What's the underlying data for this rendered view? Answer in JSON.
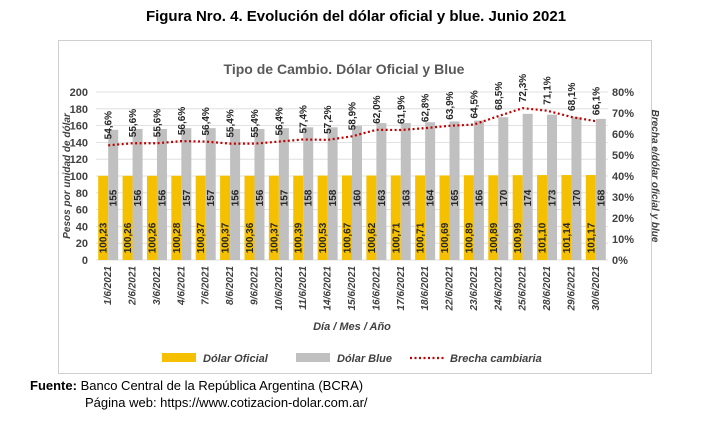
{
  "figure_title": "Figura Nro. 4. Evolución del dólar oficial y blue. Junio 2021",
  "source": {
    "label": "Fuente:",
    "text": "Banco Central de la República Argentina (BCRA)",
    "web": "Página web: https://www.cotizacion-dolar.com.ar/"
  },
  "colors": {
    "oficial": "#F5C000",
    "blue": "#C0C0C0",
    "brecha": "#C00000",
    "grid": "#d9d9d9"
  },
  "chart_data": {
    "type": "bar",
    "title": "Tipo de Cambio. Dólar Oficial y Blue",
    "xlabel": "Día / Mes / Año",
    "ylabel": "Pesos por unidad de dólar",
    "y2label": "Brecha e/dólar oficial y blue",
    "ylim": [
      0,
      200
    ],
    "y_ticks": [
      "0",
      "20",
      "40",
      "60",
      "80",
      "100",
      "120",
      "140",
      "160",
      "180",
      "200"
    ],
    "y2lim": [
      0,
      80
    ],
    "y2_ticks": [
      "0%",
      "10%",
      "20%",
      "30%",
      "40%",
      "50%",
      "60%",
      "70%",
      "80%"
    ],
    "grid": true,
    "legend_position": "bottom",
    "categories": [
      "1/6/2021",
      "2/6/2021",
      "3/6/2021",
      "4/6/2021",
      "7/6/2021",
      "8/6/2021",
      "9/6/2021",
      "10/6/2021",
      "11/6/2021",
      "14/6/2021",
      "15/6/2021",
      "16/6/2021",
      "17/6/2021",
      "18/6/2021",
      "22/6/2021",
      "23/6/2021",
      "24/6/2021",
      "25/6/2021",
      "28/6/2021",
      "29/6/2021",
      "30/6/2021"
    ],
    "series": [
      {
        "name": "Dólar Oficial",
        "kind": "bar",
        "values": [
          100.23,
          100.26,
          100.26,
          100.28,
          100.37,
          100.37,
          100.36,
          100.37,
          100.39,
          100.53,
          100.67,
          100.62,
          100.71,
          100.71,
          100.69,
          100.89,
          100.89,
          100.99,
          101.1,
          101.14,
          101.17
        ],
        "labels": [
          "100,23",
          "100,26",
          "100,26",
          "100,28",
          "100,37",
          "100,37",
          "100,36",
          "100,37",
          "100,39",
          "100,53",
          "100,67",
          "100,62",
          "100,71",
          "100,71",
          "100,69",
          "100,89",
          "100,89",
          "100,99",
          "101,10",
          "101,14",
          "101,17"
        ]
      },
      {
        "name": "Dólar Blue",
        "kind": "bar",
        "values": [
          155,
          156,
          156,
          157,
          157,
          156,
          156,
          157,
          158,
          158,
          160,
          163,
          163,
          164,
          165,
          166,
          170,
          174,
          173,
          170,
          168
        ],
        "labels": [
          "155",
          "156",
          "156",
          "157",
          "157",
          "156",
          "156",
          "157",
          "158",
          "158",
          "160",
          "163",
          "163",
          "164",
          "165",
          "166",
          "170",
          "174",
          "173",
          "170",
          "168"
        ]
      },
      {
        "name": "Brecha cambiaria",
        "kind": "line",
        "axis": "right",
        "values": [
          54.6,
          55.6,
          55.6,
          56.6,
          56.4,
          55.4,
          55.4,
          56.4,
          57.4,
          57.2,
          58.9,
          62.0,
          61.9,
          62.8,
          63.9,
          64.5,
          68.5,
          72.3,
          71.1,
          68.1,
          66.1
        ],
        "labels": [
          "54,6%",
          "55,6%",
          "55,6%",
          "56,6%",
          "56,4%",
          "55,4%",
          "55,4%",
          "56,4%",
          "57,4%",
          "57,2%",
          "58,9%",
          "62,0%",
          "61,9%",
          "62,8%",
          "63,9%",
          "64,5%",
          "68,5%",
          "72,3%",
          "71,1%",
          "68,1%",
          "66,1%"
        ]
      }
    ]
  }
}
